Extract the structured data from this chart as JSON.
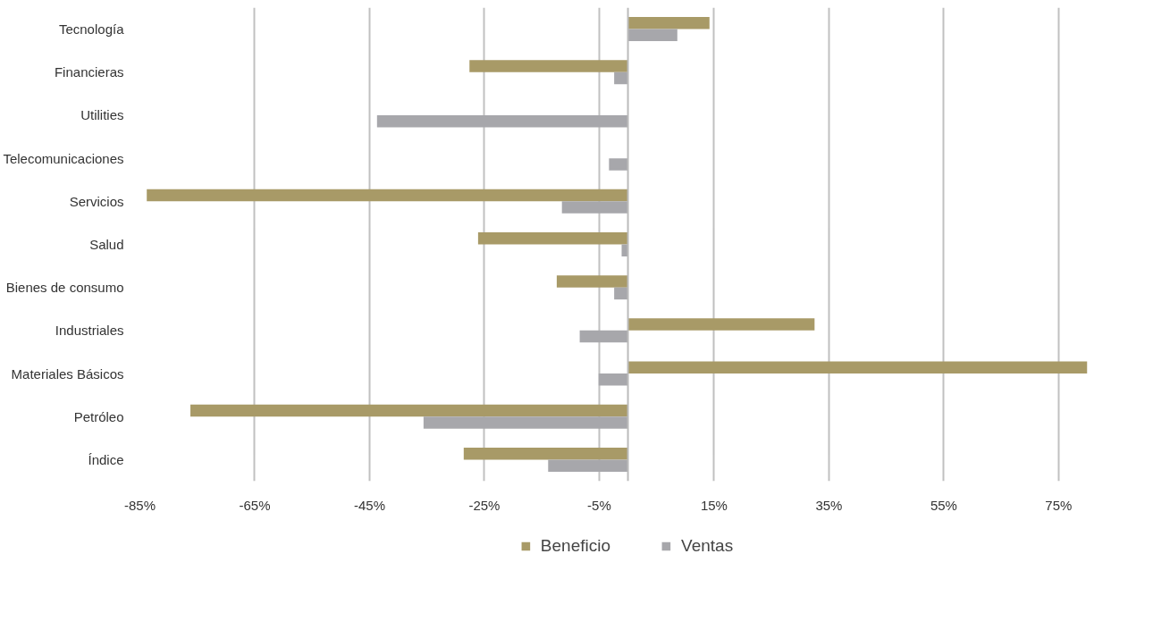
{
  "chart_data": {
    "type": "bar",
    "orientation": "horizontal",
    "categories": [
      "Tecnología",
      "Financieras",
      "Utilities",
      "Telecomunicaciones",
      "Servicios",
      "Salud",
      "Bienes de consumo",
      "Industriales",
      "Materiales Básicos",
      "Petróleo",
      "Índice"
    ],
    "series": [
      {
        "name": "Beneficio",
        "color": "#a89a67",
        "values": [
          14.2,
          -27.6,
          null,
          null,
          -83.8,
          -26.1,
          -12.4,
          32.5,
          80,
          -76.2,
          -28.6
        ]
      },
      {
        "name": "Ventas",
        "color": "#a7a7ab",
        "values": [
          8.6,
          -2.4,
          -43.7,
          -3.3,
          -11.5,
          -1.1,
          -2.4,
          -8.4,
          -5.1,
          -35.6,
          -13.9
        ]
      }
    ],
    "xlim": [
      -85,
      80
    ],
    "xticks": [
      {
        "value": -85,
        "label": "-85%"
      },
      {
        "value": -65,
        "label": "-65%"
      },
      {
        "value": -45,
        "label": "-45%"
      },
      {
        "value": -25,
        "label": "-25%"
      },
      {
        "value": -5,
        "label": "-5%"
      },
      {
        "value": 15,
        "label": "15%"
      },
      {
        "value": 35,
        "label": "35%"
      },
      {
        "value": 55,
        "label": "55%"
      },
      {
        "value": 75,
        "label": "75%"
      }
    ],
    "grid": "x",
    "legend": "bottom"
  }
}
